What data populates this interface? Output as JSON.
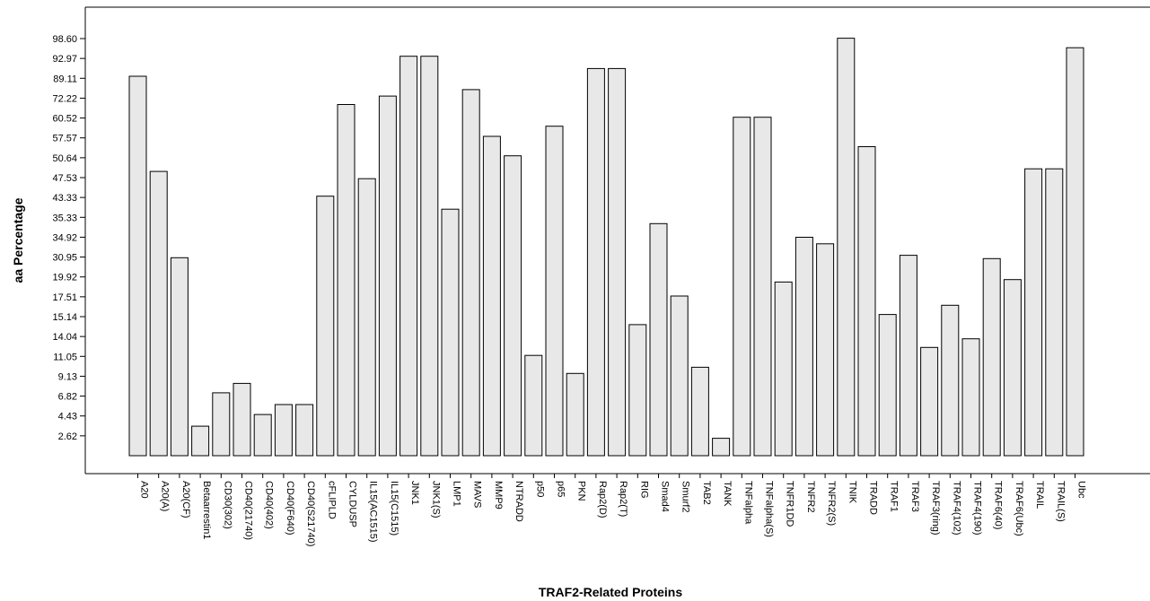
{
  "chart_data": {
    "type": "bar",
    "title": "",
    "xlabel": "TRAF2-Related Proteins",
    "ylabel": "aa Percentage",
    "y_ticks": [
      "2.62",
      "4.43",
      "6.82",
      "9.13",
      "11.05",
      "14.04",
      "15.14",
      "17.51",
      "19.92",
      "30.95",
      "34.92",
      "35.33",
      "43.33",
      "47.53",
      "50.64",
      "57.57",
      "60.52",
      "72.22",
      "89.11",
      "92.97",
      "98.60"
    ],
    "categories": [
      "A20",
      "A20(A)",
      "A20(CF)",
      "Betaarrestin1",
      "CD30(302)",
      "CD40(21740)",
      "CD40(402)",
      "CD40(F640)",
      "CD40(S21740)",
      "cFLIPLD",
      "CYLDUSP",
      "IL15(AC1515)",
      "IL15(C1515)",
      "JNK1",
      "JNK1(S)",
      "LMP1",
      "MAVS",
      "MMP9",
      "NTRADD",
      "p50",
      "p65",
      "PKN",
      "Rap2(D)",
      "Rap2(T)",
      "RIG",
      "Smad4",
      "Smurf2",
      "TAB2",
      "TANK",
      "TNFalpha",
      "TNFalpha(S)",
      "TNFR1DD",
      "TNFR2",
      "TNFR2(S)",
      "TNIK",
      "TRADD",
      "TRAF1",
      "TRAF3",
      "TRAF3(ring)",
      "TRAF4(102)",
      "TRAF4(190)",
      "TRAF6(40)",
      "TRAF6(Ubc)",
      "TRAIL",
      "TRAIL(S)",
      "Ubc"
    ],
    "values": [
      89.5,
      48.5,
      30.6,
      3.5,
      7.2,
      8.3,
      4.6,
      5.8,
      5.8,
      43.6,
      68.5,
      47.3,
      74.0,
      93.6,
      93.6,
      38.6,
      79.5,
      57.8,
      51.3,
      11.2,
      59.3,
      9.4,
      91.0,
      91.0,
      14.7,
      35.2,
      17.6,
      10.0,
      2.3,
      61.0,
      61.0,
      19.3,
      34.9,
      33.6,
      98.8,
      54.5,
      15.4,
      31.3,
      12.4,
      16.5,
      13.7,
      30.1,
      19.6,
      48.9,
      48.9,
      96.0
    ],
    "bar_fill": "#e8e8e8",
    "bar_stroke": "#000000",
    "grid": false
  }
}
